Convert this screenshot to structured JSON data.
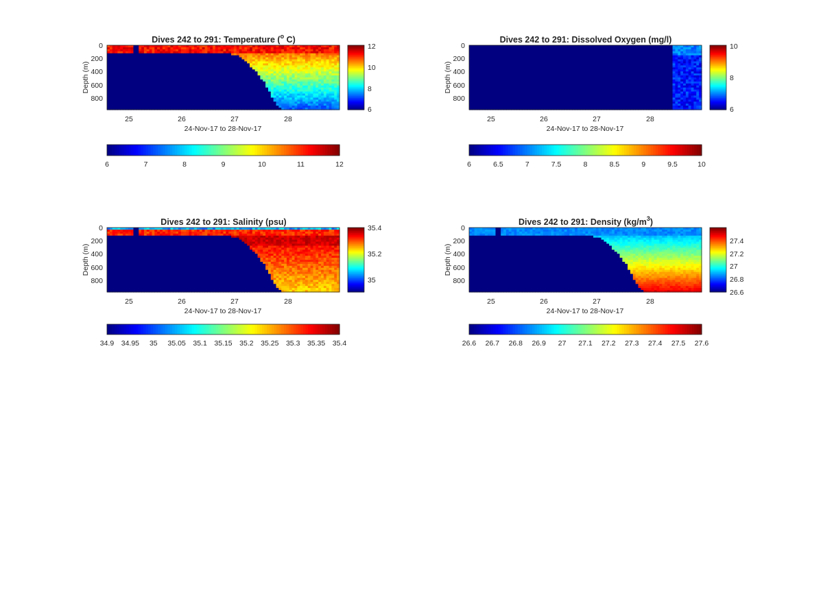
{
  "figure": {
    "background": "#ffffff",
    "colormap": "jet"
  },
  "chart_data": [
    {
      "type": "heatmap",
      "id": "temperature",
      "title_main": "Dives 242 to 291: Temperature (",
      "title_sup": "o",
      "title_tail": " C)",
      "xlabel": "24-Nov-17 to 28-Nov-17",
      "ylabel": "Depth (m)",
      "xlim": [
        24.6,
        29.0
      ],
      "xticks": [
        "25",
        "26",
        "27",
        "28"
      ],
      "ylim": [
        0,
        960
      ],
      "yticks": [
        "0",
        "200",
        "400",
        "600",
        "800"
      ],
      "yreversed": true,
      "clim": [
        6,
        12
      ],
      "colorbar_ticks": [
        "6",
        "8",
        "10",
        "12"
      ],
      "hcolorbar_ticks": [
        "6",
        "7",
        "8",
        "9",
        "10",
        "11",
        "12"
      ],
      "field": "temperature",
      "no_data_value": 6,
      "profile_bottom_depth_m": [
        {
          "x": 24.6,
          "depth": 110
        },
        {
          "x": 25.5,
          "depth": 110
        },
        {
          "x": 26.3,
          "depth": 110
        },
        {
          "x": 26.8,
          "depth": 110
        },
        {
          "x": 27.05,
          "depth": 150
        },
        {
          "x": 27.25,
          "depth": 260
        },
        {
          "x": 27.45,
          "depth": 420
        },
        {
          "x": 27.6,
          "depth": 580
        },
        {
          "x": 27.72,
          "depth": 760
        },
        {
          "x": 27.82,
          "depth": 900
        },
        {
          "x": 27.9,
          "depth": 960
        },
        {
          "x": 29.0,
          "depth": 960
        }
      ]
    },
    {
      "type": "heatmap",
      "id": "oxygen",
      "title_main": "Dives 242 to 291: Dissolved Oxygen (mg/l)",
      "title_sup": "",
      "title_tail": "",
      "xlabel": "24-Nov-17 to 28-Nov-17",
      "ylabel": "Depth (m)",
      "xlim": [
        24.6,
        29.0
      ],
      "xticks": [
        "25",
        "26",
        "27",
        "28"
      ],
      "ylim": [
        0,
        960
      ],
      "yticks": [
        "0",
        "200",
        "400",
        "600",
        "800"
      ],
      "yreversed": true,
      "clim": [
        6,
        10
      ],
      "colorbar_ticks": [
        "6",
        "8",
        "10"
      ],
      "hcolorbar_ticks": [
        "6",
        "6.5",
        "7",
        "7.5",
        "8",
        "8.5",
        "9",
        "9.5",
        "10"
      ],
      "field": "oxygen",
      "no_data_value": 6,
      "data_start_x": 28.45
    },
    {
      "type": "heatmap",
      "id": "salinity",
      "title_main": "Dives 242 to 291: Salinity (psu)",
      "title_sup": "",
      "title_tail": "",
      "xlabel": "24-Nov-17 to 28-Nov-17",
      "ylabel": "Depth (m)",
      "xlim": [
        24.6,
        29.0
      ],
      "xticks": [
        "25",
        "26",
        "27",
        "28"
      ],
      "ylim": [
        0,
        960
      ],
      "yticks": [
        "0",
        "200",
        "400",
        "600",
        "800"
      ],
      "yreversed": true,
      "clim": [
        34.9,
        35.4
      ],
      "colorbar_ticks": [
        "35",
        "35.2",
        "35.4"
      ],
      "hcolorbar_ticks": [
        "34.9",
        "34.95",
        "35",
        "35.05",
        "35.1",
        "35.15",
        "35.2",
        "35.25",
        "35.3",
        "35.35",
        "35.4"
      ],
      "field": "salinity",
      "no_data_value": 34.9
    },
    {
      "type": "heatmap",
      "id": "density",
      "title_main": "Dives 242 to 291: Density (kg/m",
      "title_sup": "3",
      "title_tail": ")",
      "xlabel": "24-Nov-17 to 28-Nov-17",
      "ylabel": "Depth (m)",
      "xlim": [
        24.6,
        29.0
      ],
      "xticks": [
        "25",
        "26",
        "27",
        "28"
      ],
      "ylim": [
        0,
        960
      ],
      "yticks": [
        "0",
        "200",
        "400",
        "600",
        "800"
      ],
      "yreversed": true,
      "clim": [
        26.6,
        27.6
      ],
      "colorbar_ticks": [
        "26.6",
        "26.8",
        "27",
        "27.2",
        "27.4"
      ],
      "hcolorbar_ticks": [
        "26.6",
        "26.7",
        "26.8",
        "26.9",
        "27",
        "27.1",
        "27.2",
        "27.3",
        "27.4",
        "27.5",
        "27.6"
      ],
      "field": "density",
      "no_data_value": 26.6
    }
  ]
}
